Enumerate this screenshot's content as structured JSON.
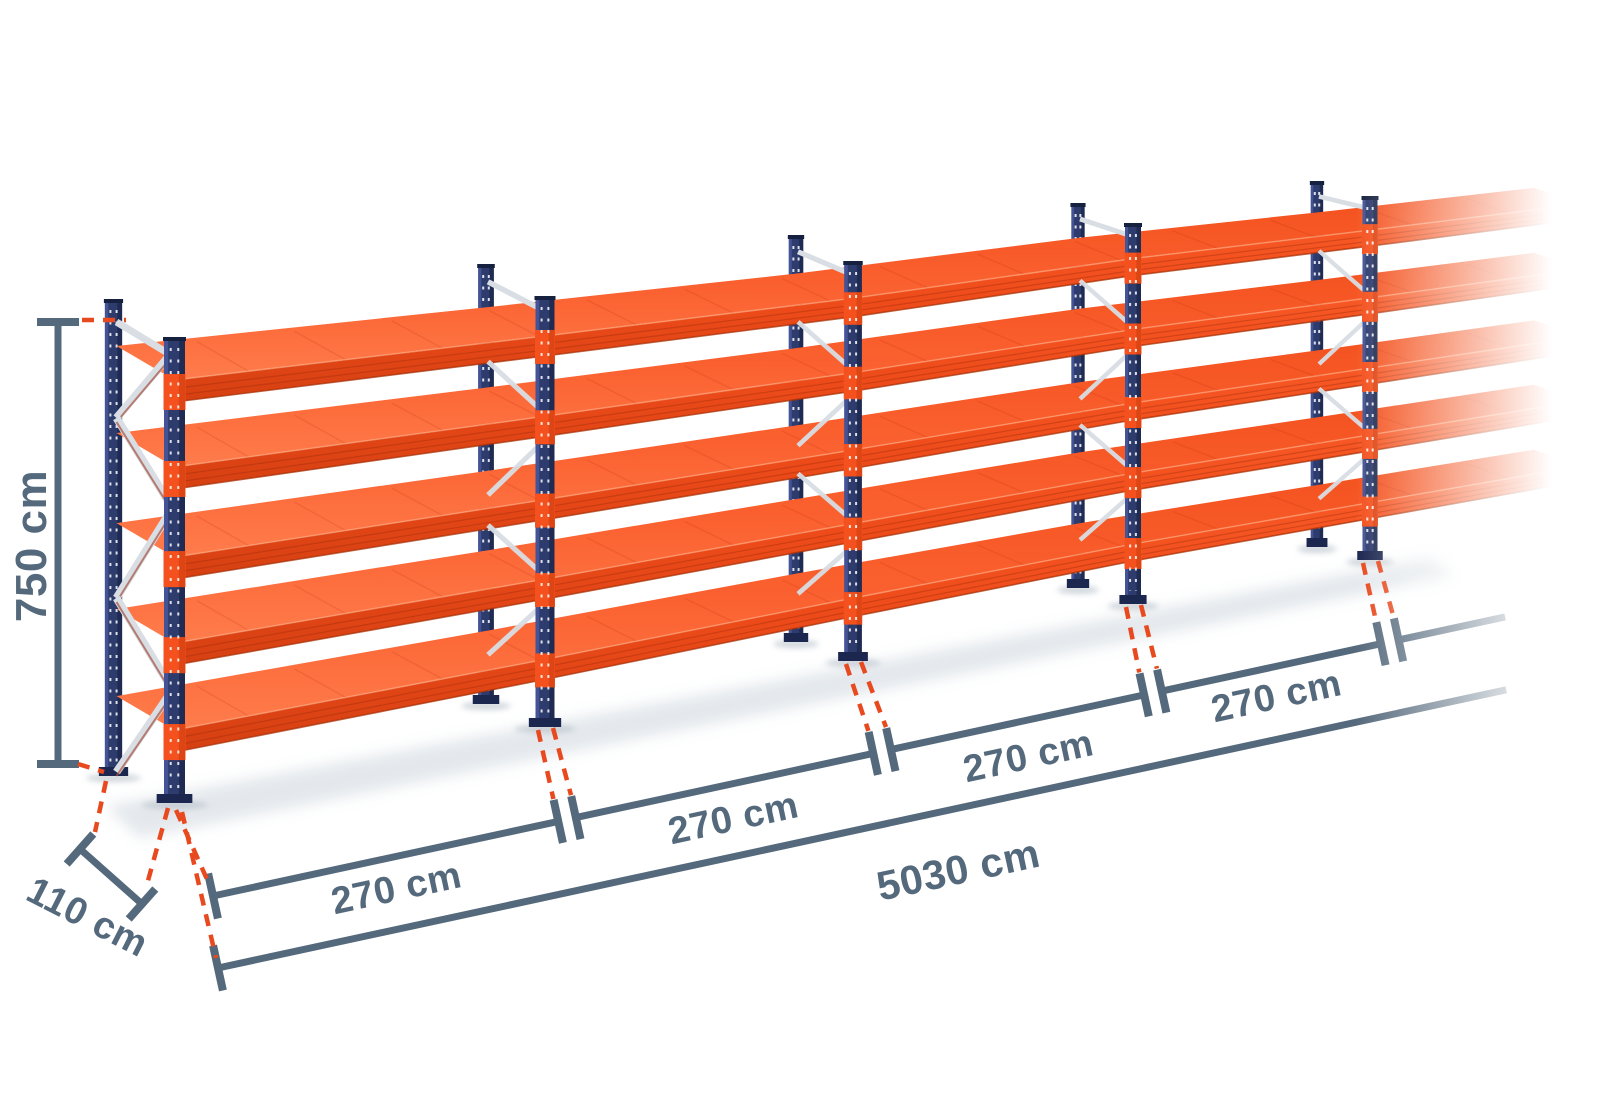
{
  "diagram": {
    "subject": "longspan-shelving-racking-row-3d",
    "shelf_levels": 5,
    "visible_frames": 5,
    "labeled_bays": 4,
    "row_continues_with_fade": true
  },
  "dimensions": {
    "height": {
      "label": "750 cm",
      "value": 750,
      "unit": "cm"
    },
    "depth": {
      "label": "110 cm",
      "value": 110,
      "unit": "cm"
    },
    "bays": [
      {
        "label": "270 cm",
        "value": 270,
        "unit": "cm"
      },
      {
        "label": "270 cm",
        "value": 270,
        "unit": "cm"
      },
      {
        "label": "270 cm",
        "value": 270,
        "unit": "cm"
      },
      {
        "label": "270 cm",
        "value": 270,
        "unit": "cm"
      }
    ],
    "total_length": {
      "label": "5030 cm",
      "value": 5030,
      "unit": "cm"
    }
  },
  "colors": {
    "background": "#ffffff",
    "shelf_top_back": "#f2501c",
    "shelf_top_mid": "#fb6231",
    "shelf_top_front": "#ff7c4c",
    "fascia_top": "#fa5c28",
    "fascia_mid": "#ee4b1a",
    "fascia_bottom": "#d64012",
    "fascia_edge_dark": "#a83208",
    "upright": "#2d3b6d",
    "upright_dark": "#1f2b52",
    "upright_light": "#46569a",
    "upright_cap": "#16203f",
    "foot": "#1c2750",
    "patch": "#f4511e",
    "patch_dark": "#d74212",
    "brace": "#d9dee4",
    "brace_edge": "#a65140",
    "dimension": "#55697c",
    "leader": "#e8491e",
    "shadow": "#c9d2da",
    "dot": "#ffffff"
  }
}
